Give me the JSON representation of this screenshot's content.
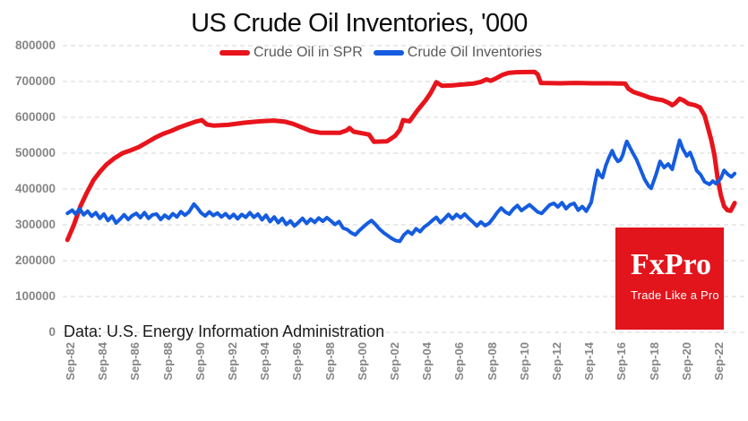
{
  "footer": {
    "source_note": "Data: U.S. Energy Information Administration"
  },
  "logo": {
    "brand": "FxPro",
    "tagline": "Trade Like a Pro",
    "bg": "#e2141c",
    "text_color": "#ffffff"
  },
  "chart_data": {
    "type": "line",
    "title": "US Crude Oil Inventories, '000",
    "xlabel": "",
    "ylabel": "",
    "grid": "horizontal-dashed",
    "legend_position": "top-center",
    "x_range_years": [
      1982.6,
      2023.75
    ],
    "ylim": [
      0,
      800000
    ],
    "y_ticks": [
      {
        "value": 800000,
        "label": "800000"
      },
      {
        "value": 700000,
        "label": "700000"
      },
      {
        "value": 600000,
        "label": "600000"
      },
      {
        "value": 500000,
        "label": "500000"
      },
      {
        "value": 400000,
        "label": "400000"
      },
      {
        "value": 300000,
        "label": "300000"
      },
      {
        "value": 200000,
        "label": "200000"
      },
      {
        "value": 100000,
        "label": "100000"
      },
      {
        "value": 0,
        "label": "0"
      }
    ],
    "x_ticks": [
      {
        "year": 1982.75,
        "label": "Sep-82"
      },
      {
        "year": 1984.75,
        "label": "Sep-84"
      },
      {
        "year": 1986.75,
        "label": "Sep-86"
      },
      {
        "year": 1988.75,
        "label": "Sep-88"
      },
      {
        "year": 1990.75,
        "label": "Sep-90"
      },
      {
        "year": 1992.75,
        "label": "Sep-92"
      },
      {
        "year": 1994.75,
        "label": "Sep-94"
      },
      {
        "year": 1996.75,
        "label": "Sep-96"
      },
      {
        "year": 1998.75,
        "label": "Sep-98"
      },
      {
        "year": 2000.75,
        "label": "Sep-00"
      },
      {
        "year": 2002.75,
        "label": "Sep-02"
      },
      {
        "year": 2004.75,
        "label": "Sep-04"
      },
      {
        "year": 2006.75,
        "label": "Sep-06"
      },
      {
        "year": 2008.75,
        "label": "Sep-08"
      },
      {
        "year": 2010.75,
        "label": "Sep-10"
      },
      {
        "year": 2012.75,
        "label": "Sep-12"
      },
      {
        "year": 2014.75,
        "label": "Sep-14"
      },
      {
        "year": 2016.75,
        "label": "Sep-16"
      },
      {
        "year": 2018.75,
        "label": "Sep-18"
      },
      {
        "year": 2020.75,
        "label": "Sep-20"
      },
      {
        "year": 2022.75,
        "label": "Sep-22"
      }
    ],
    "series": [
      {
        "name": "Crude Oil in SPR",
        "color": "#e8141c",
        "points": [
          [
            1982.6,
            258000
          ],
          [
            1983.0,
            300000
          ],
          [
            1983.4,
            352000
          ],
          [
            1983.8,
            390000
          ],
          [
            1984.2,
            424000
          ],
          [
            1984.6,
            448000
          ],
          [
            1985.0,
            468000
          ],
          [
            1985.5,
            486000
          ],
          [
            1986.0,
            500000
          ],
          [
            1986.5,
            508000
          ],
          [
            1987.0,
            517000
          ],
          [
            1987.5,
            530000
          ],
          [
            1988.0,
            543000
          ],
          [
            1988.5,
            554000
          ],
          [
            1989.0,
            562000
          ],
          [
            1989.5,
            572000
          ],
          [
            1990.0,
            580000
          ],
          [
            1990.5,
            588000
          ],
          [
            1990.9,
            592000
          ],
          [
            1991.2,
            580000
          ],
          [
            1991.6,
            577000
          ],
          [
            1992.5,
            579000
          ],
          [
            1993.5,
            585000
          ],
          [
            1994.5,
            589000
          ],
          [
            1995.3,
            591000
          ],
          [
            1996.0,
            588000
          ],
          [
            1996.5,
            582000
          ],
          [
            1997.0,
            573000
          ],
          [
            1997.6,
            562000
          ],
          [
            1998.2,
            557000
          ],
          [
            1999.4,
            557000
          ],
          [
            1999.8,
            563000
          ],
          [
            2000.0,
            570000
          ],
          [
            2000.25,
            560000
          ],
          [
            2000.6,
            557000
          ],
          [
            2001.2,
            552000
          ],
          [
            2001.5,
            532000
          ],
          [
            2002.3,
            533000
          ],
          [
            2002.8,
            548000
          ],
          [
            2003.1,
            565000
          ],
          [
            2003.3,
            592000
          ],
          [
            2003.7,
            589000
          ],
          [
            2004.2,
            620000
          ],
          [
            2004.7,
            648000
          ],
          [
            2005.0,
            668000
          ],
          [
            2005.35,
            698000
          ],
          [
            2005.7,
            688000
          ],
          [
            2006.3,
            689000
          ],
          [
            2007.0,
            692000
          ],
          [
            2007.6,
            694000
          ],
          [
            2008.1,
            699000
          ],
          [
            2008.45,
            706000
          ],
          [
            2008.7,
            702000
          ],
          [
            2009.0,
            708000
          ],
          [
            2009.4,
            718000
          ],
          [
            2009.8,
            724000
          ],
          [
            2010.3,
            726000
          ],
          [
            2011.4,
            727000
          ],
          [
            2011.6,
            720000
          ],
          [
            2011.8,
            696000
          ],
          [
            2013.0,
            695000
          ],
          [
            2014.0,
            696000
          ],
          [
            2015.0,
            695000
          ],
          [
            2016.0,
            695000
          ],
          [
            2017.0,
            694000
          ],
          [
            2017.2,
            680000
          ],
          [
            2017.5,
            671000
          ],
          [
            2018.1,
            662000
          ],
          [
            2018.5,
            655000
          ],
          [
            2018.9,
            651000
          ],
          [
            2019.3,
            648000
          ],
          [
            2019.7,
            640000
          ],
          [
            2019.9,
            634000
          ],
          [
            2020.1,
            640000
          ],
          [
            2020.35,
            652000
          ],
          [
            2020.6,
            647000
          ],
          [
            2020.9,
            638000
          ],
          [
            2021.3,
            634000
          ],
          [
            2021.6,
            628000
          ],
          [
            2021.9,
            605000
          ],
          [
            2022.1,
            572000
          ],
          [
            2022.3,
            538000
          ],
          [
            2022.5,
            495000
          ],
          [
            2022.7,
            430000
          ],
          [
            2022.9,
            383000
          ],
          [
            2023.1,
            352000
          ],
          [
            2023.3,
            341000
          ],
          [
            2023.5,
            339000
          ],
          [
            2023.65,
            352000
          ],
          [
            2023.75,
            361000
          ]
        ]
      },
      {
        "name": "Crude Oil Inventories",
        "color": "#155cdf",
        "points": [
          [
            1982.6,
            332000
          ],
          [
            1982.9,
            341000
          ],
          [
            1983.1,
            330000
          ],
          [
            1983.35,
            345000
          ],
          [
            1983.6,
            328000
          ],
          [
            1983.85,
            338000
          ],
          [
            1984.1,
            324000
          ],
          [
            1984.35,
            334000
          ],
          [
            1984.6,
            318000
          ],
          [
            1984.85,
            330000
          ],
          [
            1985.1,
            312000
          ],
          [
            1985.35,
            324000
          ],
          [
            1985.6,
            305000
          ],
          [
            1985.85,
            316000
          ],
          [
            1986.1,
            328000
          ],
          [
            1986.35,
            315000
          ],
          [
            1986.6,
            326000
          ],
          [
            1986.85,
            332000
          ],
          [
            1987.1,
            320000
          ],
          [
            1987.35,
            334000
          ],
          [
            1987.6,
            318000
          ],
          [
            1987.85,
            328000
          ],
          [
            1988.1,
            330000
          ],
          [
            1988.35,
            315000
          ],
          [
            1988.6,
            327000
          ],
          [
            1988.85,
            318000
          ],
          [
            1989.1,
            331000
          ],
          [
            1989.35,
            322000
          ],
          [
            1989.6,
            337000
          ],
          [
            1989.85,
            327000
          ],
          [
            1990.1,
            336000
          ],
          [
            1990.4,
            358000
          ],
          [
            1990.6,
            348000
          ],
          [
            1990.85,
            333000
          ],
          [
            1991.1,
            325000
          ],
          [
            1991.35,
            336000
          ],
          [
            1991.6,
            326000
          ],
          [
            1991.85,
            333000
          ],
          [
            1992.1,
            322000
          ],
          [
            1992.35,
            331000
          ],
          [
            1992.6,
            319000
          ],
          [
            1992.85,
            329000
          ],
          [
            1993.1,
            317000
          ],
          [
            1993.35,
            329000
          ],
          [
            1993.6,
            321000
          ],
          [
            1993.85,
            334000
          ],
          [
            1994.1,
            321000
          ],
          [
            1994.35,
            330000
          ],
          [
            1994.6,
            314000
          ],
          [
            1994.85,
            327000
          ],
          [
            1995.1,
            309000
          ],
          [
            1995.35,
            322000
          ],
          [
            1995.6,
            306000
          ],
          [
            1995.85,
            318000
          ],
          [
            1996.1,
            301000
          ],
          [
            1996.35,
            311000
          ],
          [
            1996.6,
            297000
          ],
          [
            1996.85,
            307000
          ],
          [
            1997.1,
            318000
          ],
          [
            1997.35,
            304000
          ],
          [
            1997.6,
            316000
          ],
          [
            1997.85,
            307000
          ],
          [
            1998.1,
            319000
          ],
          [
            1998.35,
            310000
          ],
          [
            1998.6,
            320000
          ],
          [
            1998.85,
            311000
          ],
          [
            1999.1,
            301000
          ],
          [
            1999.35,
            309000
          ],
          [
            1999.6,
            291000
          ],
          [
            1999.85,
            287000
          ],
          [
            2000.1,
            278000
          ],
          [
            2000.35,
            272000
          ],
          [
            2000.6,
            284000
          ],
          [
            2000.85,
            294000
          ],
          [
            2001.1,
            304000
          ],
          [
            2001.35,
            312000
          ],
          [
            2001.6,
            301000
          ],
          [
            2001.85,
            288000
          ],
          [
            2002.1,
            278000
          ],
          [
            2002.35,
            270000
          ],
          [
            2002.6,
            262000
          ],
          [
            2002.85,
            256000
          ],
          [
            2003.1,
            254000
          ],
          [
            2003.35,
            272000
          ],
          [
            2003.6,
            282000
          ],
          [
            2003.85,
            274000
          ],
          [
            2004.1,
            289000
          ],
          [
            2004.35,
            281000
          ],
          [
            2004.6,
            294000
          ],
          [
            2004.85,
            302000
          ],
          [
            2005.1,
            312000
          ],
          [
            2005.35,
            321000
          ],
          [
            2005.6,
            306000
          ],
          [
            2005.85,
            317000
          ],
          [
            2006.1,
            329000
          ],
          [
            2006.35,
            317000
          ],
          [
            2006.6,
            329000
          ],
          [
            2006.85,
            320000
          ],
          [
            2007.1,
            330000
          ],
          [
            2007.35,
            318000
          ],
          [
            2007.6,
            308000
          ],
          [
            2007.85,
            297000
          ],
          [
            2008.1,
            308000
          ],
          [
            2008.35,
            298000
          ],
          [
            2008.6,
            304000
          ],
          [
            2008.85,
            318000
          ],
          [
            2009.1,
            334000
          ],
          [
            2009.35,
            347000
          ],
          [
            2009.6,
            336000
          ],
          [
            2009.85,
            330000
          ],
          [
            2010.1,
            344000
          ],
          [
            2010.35,
            354000
          ],
          [
            2010.6,
            340000
          ],
          [
            2010.85,
            348000
          ],
          [
            2011.1,
            356000
          ],
          [
            2011.35,
            346000
          ],
          [
            2011.6,
            336000
          ],
          [
            2011.85,
            332000
          ],
          [
            2012.1,
            344000
          ],
          [
            2012.35,
            356000
          ],
          [
            2012.6,
            360000
          ],
          [
            2012.85,
            350000
          ],
          [
            2013.1,
            362000
          ],
          [
            2013.35,
            345000
          ],
          [
            2013.6,
            356000
          ],
          [
            2013.85,
            360000
          ],
          [
            2014.1,
            341000
          ],
          [
            2014.35,
            351000
          ],
          [
            2014.6,
            338000
          ],
          [
            2014.9,
            362000
          ],
          [
            2015.0,
            385000
          ],
          [
            2015.15,
            420000
          ],
          [
            2015.3,
            452000
          ],
          [
            2015.45,
            438000
          ],
          [
            2015.6,
            432000
          ],
          [
            2015.8,
            465000
          ],
          [
            2016.0,
            488000
          ],
          [
            2016.2,
            507000
          ],
          [
            2016.35,
            490000
          ],
          [
            2016.55,
            477000
          ],
          [
            2016.7,
            481000
          ],
          [
            2016.85,
            495000
          ],
          [
            2017.0,
            520000
          ],
          [
            2017.1,
            533000
          ],
          [
            2017.3,
            515000
          ],
          [
            2017.5,
            498000
          ],
          [
            2017.7,
            482000
          ],
          [
            2017.9,
            460000
          ],
          [
            2018.2,
            427000
          ],
          [
            2018.45,
            408000
          ],
          [
            2018.6,
            402000
          ],
          [
            2018.9,
            440000
          ],
          [
            2019.15,
            477000
          ],
          [
            2019.4,
            460000
          ],
          [
            2019.65,
            470000
          ],
          [
            2019.9,
            455000
          ],
          [
            2020.1,
            490000
          ],
          [
            2020.35,
            536000
          ],
          [
            2020.55,
            512000
          ],
          [
            2020.8,
            492000
          ],
          [
            2021.0,
            502000
          ],
          [
            2021.2,
            480000
          ],
          [
            2021.4,
            452000
          ],
          [
            2021.65,
            440000
          ],
          [
            2021.9,
            420000
          ],
          [
            2022.2,
            413000
          ],
          [
            2022.4,
            422000
          ],
          [
            2022.6,
            415000
          ],
          [
            2022.9,
            430000
          ],
          [
            2023.1,
            452000
          ],
          [
            2023.35,
            440000
          ],
          [
            2023.55,
            434000
          ],
          [
            2023.75,
            443000
          ]
        ]
      }
    ],
    "grid_color": "#dedede",
    "axis_label_color": "#868686"
  }
}
